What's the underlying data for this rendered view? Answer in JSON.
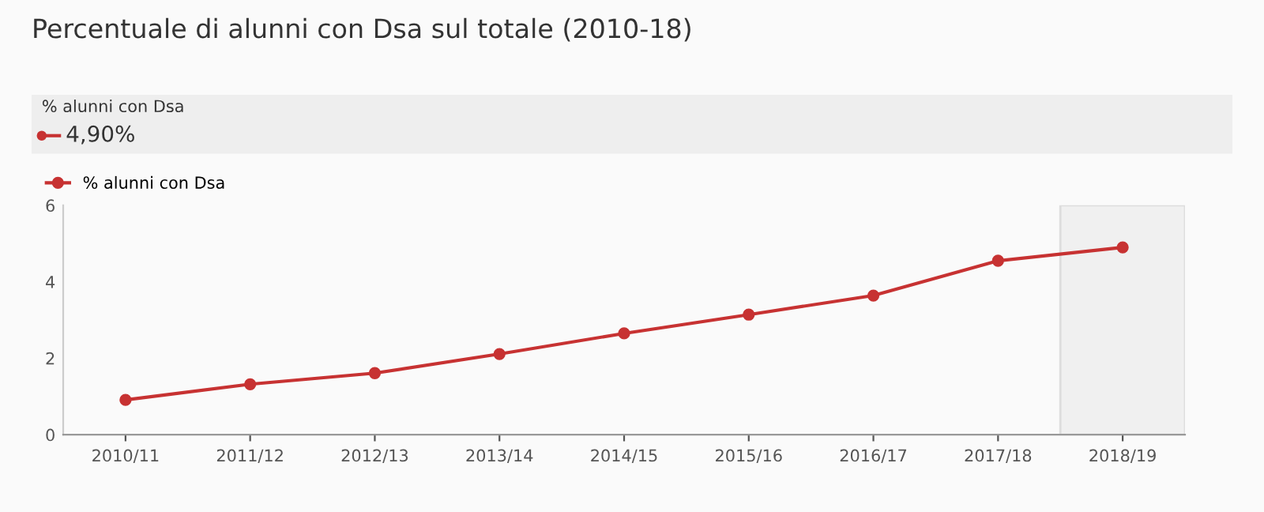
{
  "chart_data": {
    "type": "line",
    "title": "Percentuale di alunni con Dsa sul totale (2010-18)",
    "categories": [
      "2010/11",
      "2011/12",
      "2012/13",
      "2013/14",
      "2014/15",
      "2015/16",
      "2016/17",
      "2017/18",
      "2018/19"
    ],
    "series": [
      {
        "name": "% alunni con Dsa",
        "color": "#c73232",
        "values": [
          0.91,
          1.32,
          1.61,
          2.11,
          2.65,
          3.14,
          3.64,
          4.55,
          4.9
        ]
      }
    ],
    "ylim": [
      0,
      6
    ],
    "yticks": [
      0,
      2,
      4,
      6
    ],
    "grid": false,
    "legend": "top left",
    "marker": "circle",
    "line_style": "solid",
    "bands": [
      {
        "axis": "x",
        "from": "2018/19",
        "to": "2018/19",
        "color": "#f0f0f0"
      }
    ],
    "annotations": [
      "% alunni con Dsa",
      "4,90%"
    ]
  }
}
